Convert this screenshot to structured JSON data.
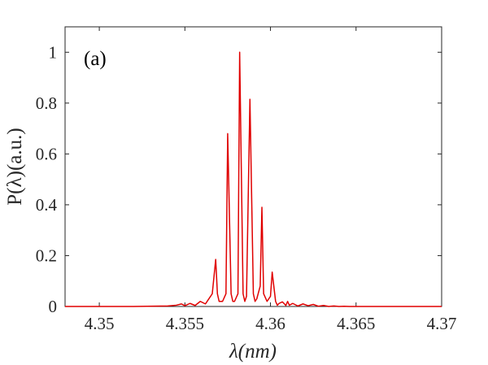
{
  "chart_data": {
    "type": "line",
    "panel_label": "(a)",
    "xlabel": "λ(nm)",
    "ylabel": "P(λ)(a.u.)",
    "xlim": [
      4.348,
      4.37
    ],
    "ylim": [
      0,
      1.1
    ],
    "x_ticks": [
      4.35,
      4.355,
      4.36,
      4.365,
      4.37
    ],
    "x_tick_labels": [
      "4.35",
      "4.355",
      "4.36",
      "4.365",
      "4.37"
    ],
    "y_ticks": [
      0,
      0.2,
      0.4,
      0.6,
      0.8,
      1
    ],
    "y_tick_labels": [
      "0",
      "0.2",
      "0.4",
      "0.6",
      "0.8",
      "1"
    ],
    "grid": false,
    "colors": {
      "line": "#e00000",
      "axes": "#262626"
    },
    "series": [
      {
        "x": [
          4.348,
          4.352,
          4.354,
          4.3545,
          4.3548,
          4.355,
          4.3553,
          4.3556,
          4.3559,
          4.3562,
          4.3566,
          4.3568,
          4.3569,
          4.357,
          4.3572,
          4.3574,
          4.3575,
          4.3577,
          4.3578,
          4.3579,
          4.3581,
          4.3582,
          4.3584,
          4.3585,
          4.3586,
          4.3588,
          4.359,
          4.3591,
          4.3592,
          4.3594,
          4.3595,
          4.3596,
          4.3598,
          4.36,
          4.3601,
          4.3603,
          4.3604,
          4.3605,
          4.3607,
          4.3609,
          4.361,
          4.3611,
          4.3613,
          4.3616,
          4.3619,
          4.3622,
          4.3625,
          4.3628,
          4.3631,
          4.3634,
          4.3637,
          4.364,
          4.3643,
          4.3646,
          4.365,
          4.366,
          4.37
        ],
        "y": [
          0.0,
          0.0,
          0.002,
          0.005,
          0.01,
          0.003,
          0.012,
          0.004,
          0.02,
          0.01,
          0.05,
          0.185,
          0.05,
          0.02,
          0.02,
          0.05,
          0.68,
          0.05,
          0.02,
          0.02,
          0.05,
          1.0,
          0.05,
          0.02,
          0.04,
          0.815,
          0.05,
          0.02,
          0.03,
          0.08,
          0.39,
          0.05,
          0.02,
          0.04,
          0.135,
          0.02,
          0.005,
          0.012,
          0.018,
          0.004,
          0.02,
          0.005,
          0.012,
          0.002,
          0.01,
          0.003,
          0.008,
          0.001,
          0.004,
          0.0,
          0.002,
          0.0,
          0.001,
          0.0,
          0.0,
          0.0,
          0.0
        ]
      }
    ]
  }
}
